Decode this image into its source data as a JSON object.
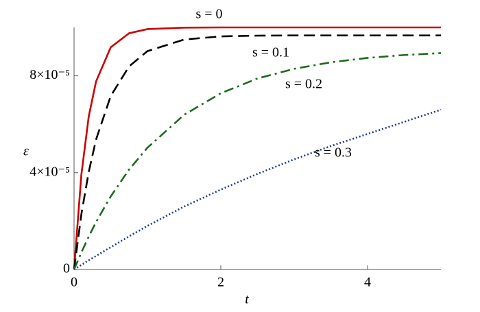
{
  "chart_data": {
    "type": "line",
    "xlabel": "t",
    "ylabel": "ε",
    "x": [
      0,
      0.1,
      0.2,
      0.3,
      0.5,
      0.75,
      1,
      1.5,
      2,
      2.5,
      3,
      3.5,
      4,
      4.5,
      5
    ],
    "series": [
      {
        "name": "s = 0",
        "color": "#cc0000",
        "dash": "solid",
        "values": [
          0,
          3.93e-05,
          6.32e-05,
          7.77e-05,
          9.18e-05,
          9.76e-05,
          9.93e-05,
          9.99e-05,
          0.0001,
          0.0001,
          0.0001,
          0.0001,
          0.0001,
          0.0001,
          0.0001
        ]
      },
      {
        "name": "s = 0.1",
        "color": "#000000",
        "dash": "dashed",
        "values": [
          0,
          2.29e-05,
          4.03e-05,
          5.37e-05,
          7.17e-05,
          8.39e-05,
          9.02e-05,
          9.5e-05,
          9.63e-05,
          9.66e-05,
          9.67e-05,
          9.67e-05,
          9.67e-05,
          9.67e-05,
          9.67e-05
        ]
      },
      {
        "name": "s = 0.2",
        "color": "#1a6b1a",
        "dash": "dashdot",
        "values": [
          0,
          7.05e-06,
          1.36e-05,
          1.96e-05,
          3.02e-05,
          4.13e-05,
          5.03e-05,
          6.39e-05,
          7.28e-05,
          7.89e-05,
          8.29e-05,
          8.56e-05,
          8.74e-05,
          8.86e-05,
          8.94e-05
        ]
      },
      {
        "name": "s = 0.3",
        "color": "#1f3a8a",
        "dash": "dotted",
        "values": [
          0,
          1.9e-06,
          3.8e-06,
          5.6e-06,
          9.2e-06,
          1.37e-05,
          1.8e-05,
          2.6e-05,
          3.3e-05,
          3.95e-05,
          4.55e-05,
          5.1e-05,
          5.6e-05,
          6.1e-05,
          6.6e-05
        ]
      }
    ],
    "xlim": [
      0,
      5
    ],
    "xticks": [
      0,
      2,
      4
    ],
    "ylim": [
      0,
      0.0001
    ],
    "yticks": [
      0,
      {
        "value": 4e-05,
        "label": "4×10⁻⁵"
      },
      {
        "value": 8e-05,
        "label": "8×10⁻⁵"
      }
    ],
    "grid": false
  }
}
